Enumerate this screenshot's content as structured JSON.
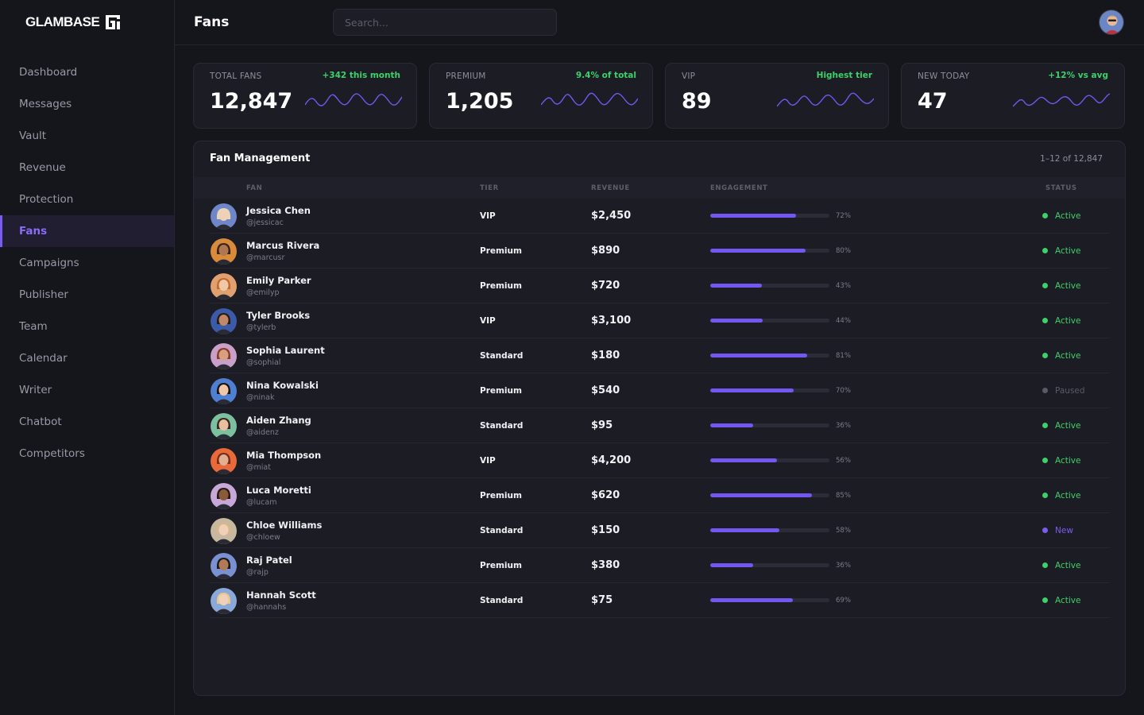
{
  "brand": {
    "name": "GLAMBASE"
  },
  "sidebar": {
    "items": [
      {
        "label": "Dashboard",
        "active": false
      },
      {
        "label": "Messages",
        "active": false
      },
      {
        "label": "Vault",
        "active": false
      },
      {
        "label": "Revenue",
        "active": false
      },
      {
        "label": "Protection",
        "active": false
      },
      {
        "label": "Fans",
        "active": true
      },
      {
        "label": "Campaigns",
        "active": false
      },
      {
        "label": "Publisher",
        "active": false
      },
      {
        "label": "Team",
        "active": false
      },
      {
        "label": "Calendar",
        "active": false
      },
      {
        "label": "Writer",
        "active": false
      },
      {
        "label": "Chatbot",
        "active": false
      },
      {
        "label": "Competitors",
        "active": false
      }
    ]
  },
  "header": {
    "title": "Fans",
    "search_placeholder": "Search..."
  },
  "stats": [
    {
      "label": "TOTAL FANS",
      "delta": "+342 this month",
      "value": "12,847"
    },
    {
      "label": "PREMIUM",
      "delta": "9.4% of total",
      "value": "1,205"
    },
    {
      "label": "VIP",
      "delta": "Highest tier",
      "value": "89"
    },
    {
      "label": "NEW TODAY",
      "delta": "+12% vs avg",
      "value": "47"
    }
  ],
  "table": {
    "title": "Fan Management",
    "count": "1–12 of 12,847",
    "columns": [
      "FAN",
      "TIER",
      "REVENUE",
      "ENGAGEMENT",
      "STATUS"
    ],
    "rows": [
      {
        "name": "Jessica Chen",
        "handle": "@jessicac",
        "tier": "VIP",
        "revenue": "$2,450",
        "engagement": 72,
        "engagement_label": "72%",
        "status": "Active"
      },
      {
        "name": "Marcus Rivera",
        "handle": "@marcusr",
        "tier": "Premium",
        "revenue": "$890",
        "engagement": 80,
        "engagement_label": "80%",
        "status": "Active"
      },
      {
        "name": "Emily Parker",
        "handle": "@emilyp",
        "tier": "Premium",
        "revenue": "$720",
        "engagement": 43,
        "engagement_label": "43%",
        "status": "Active"
      },
      {
        "name": "Tyler Brooks",
        "handle": "@tylerb",
        "tier": "VIP",
        "revenue": "$3,100",
        "engagement": 44,
        "engagement_label": "44%",
        "status": "Active"
      },
      {
        "name": "Sophia Laurent",
        "handle": "@sophial",
        "tier": "Standard",
        "revenue": "$180",
        "engagement": 81,
        "engagement_label": "81%",
        "status": "Active"
      },
      {
        "name": "Nina Kowalski",
        "handle": "@ninak",
        "tier": "Premium",
        "revenue": "$540",
        "engagement": 70,
        "engagement_label": "70%",
        "status": "Paused"
      },
      {
        "name": "Aiden Zhang",
        "handle": "@aidenz",
        "tier": "Standard",
        "revenue": "$95",
        "engagement": 36,
        "engagement_label": "36%",
        "status": "Active"
      },
      {
        "name": "Mia Thompson",
        "handle": "@miat",
        "tier": "VIP",
        "revenue": "$4,200",
        "engagement": 56,
        "engagement_label": "56%",
        "status": "Active"
      },
      {
        "name": "Luca Moretti",
        "handle": "@lucam",
        "tier": "Premium",
        "revenue": "$620",
        "engagement": 85,
        "engagement_label": "85%",
        "status": "Active"
      },
      {
        "name": "Chloe Williams",
        "handle": "@chloew",
        "tier": "Standard",
        "revenue": "$150",
        "engagement": 58,
        "engagement_label": "58%",
        "status": "New"
      },
      {
        "name": "Raj Patel",
        "handle": "@rajp",
        "tier": "Premium",
        "revenue": "$380",
        "engagement": 36,
        "engagement_label": "36%",
        "status": "Active"
      },
      {
        "name": "Hannah Scott",
        "handle": "@hannahs",
        "tier": "Standard",
        "revenue": "$75",
        "engagement": 69,
        "engagement_label": "69%",
        "status": "Active"
      }
    ]
  },
  "colors": {
    "accent": "#7357f0",
    "positive": "#3fd06a",
    "active": "#3fd06a",
    "paused": "#5a5a66",
    "new": "#7b5cf0",
    "avatar_backgrounds": [
      "#6f86c9",
      "#d98a3a",
      "#e0a070",
      "#3b5ba8",
      "#c9a0c8",
      "#4f7fd0",
      "#7dc0a0",
      "#e86a3a",
      "#c8a8d8",
      "#c8b8a0",
      "#7a90d0",
      "#8aa8d8"
    ]
  }
}
